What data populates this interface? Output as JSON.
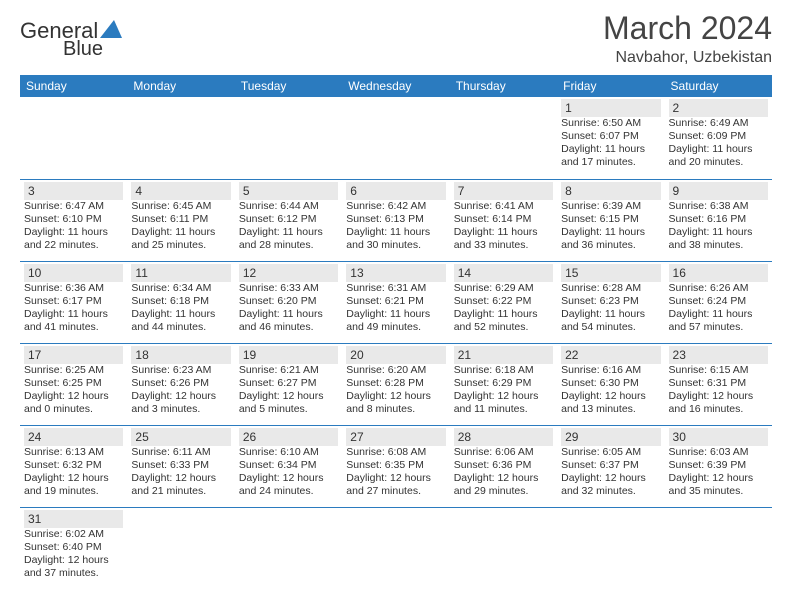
{
  "brand": {
    "name_a": "General",
    "name_b": "Blue"
  },
  "title": "March 2024",
  "location": "Navbahor, Uzbekistan",
  "colors": {
    "header_bg": "#2b7bbf",
    "header_text": "#ffffff",
    "daynum_bg": "#e9e9e9",
    "border": "#2b7bbf",
    "text": "#333333"
  },
  "day_headers": [
    "Sunday",
    "Monday",
    "Tuesday",
    "Wednesday",
    "Thursday",
    "Friday",
    "Saturday"
  ],
  "weeks": [
    [
      null,
      null,
      null,
      null,
      null,
      {
        "n": "1",
        "sunrise": "Sunrise: 6:50 AM",
        "sunset": "Sunset: 6:07 PM",
        "day1": "Daylight: 11 hours",
        "day2": "and 17 minutes."
      },
      {
        "n": "2",
        "sunrise": "Sunrise: 6:49 AM",
        "sunset": "Sunset: 6:09 PM",
        "day1": "Daylight: 11 hours",
        "day2": "and 20 minutes."
      }
    ],
    [
      {
        "n": "3",
        "sunrise": "Sunrise: 6:47 AM",
        "sunset": "Sunset: 6:10 PM",
        "day1": "Daylight: 11 hours",
        "day2": "and 22 minutes."
      },
      {
        "n": "4",
        "sunrise": "Sunrise: 6:45 AM",
        "sunset": "Sunset: 6:11 PM",
        "day1": "Daylight: 11 hours",
        "day2": "and 25 minutes."
      },
      {
        "n": "5",
        "sunrise": "Sunrise: 6:44 AM",
        "sunset": "Sunset: 6:12 PM",
        "day1": "Daylight: 11 hours",
        "day2": "and 28 minutes."
      },
      {
        "n": "6",
        "sunrise": "Sunrise: 6:42 AM",
        "sunset": "Sunset: 6:13 PM",
        "day1": "Daylight: 11 hours",
        "day2": "and 30 minutes."
      },
      {
        "n": "7",
        "sunrise": "Sunrise: 6:41 AM",
        "sunset": "Sunset: 6:14 PM",
        "day1": "Daylight: 11 hours",
        "day2": "and 33 minutes."
      },
      {
        "n": "8",
        "sunrise": "Sunrise: 6:39 AM",
        "sunset": "Sunset: 6:15 PM",
        "day1": "Daylight: 11 hours",
        "day2": "and 36 minutes."
      },
      {
        "n": "9",
        "sunrise": "Sunrise: 6:38 AM",
        "sunset": "Sunset: 6:16 PM",
        "day1": "Daylight: 11 hours",
        "day2": "and 38 minutes."
      }
    ],
    [
      {
        "n": "10",
        "sunrise": "Sunrise: 6:36 AM",
        "sunset": "Sunset: 6:17 PM",
        "day1": "Daylight: 11 hours",
        "day2": "and 41 minutes."
      },
      {
        "n": "11",
        "sunrise": "Sunrise: 6:34 AM",
        "sunset": "Sunset: 6:18 PM",
        "day1": "Daylight: 11 hours",
        "day2": "and 44 minutes."
      },
      {
        "n": "12",
        "sunrise": "Sunrise: 6:33 AM",
        "sunset": "Sunset: 6:20 PM",
        "day1": "Daylight: 11 hours",
        "day2": "and 46 minutes."
      },
      {
        "n": "13",
        "sunrise": "Sunrise: 6:31 AM",
        "sunset": "Sunset: 6:21 PM",
        "day1": "Daylight: 11 hours",
        "day2": "and 49 minutes."
      },
      {
        "n": "14",
        "sunrise": "Sunrise: 6:29 AM",
        "sunset": "Sunset: 6:22 PM",
        "day1": "Daylight: 11 hours",
        "day2": "and 52 minutes."
      },
      {
        "n": "15",
        "sunrise": "Sunrise: 6:28 AM",
        "sunset": "Sunset: 6:23 PM",
        "day1": "Daylight: 11 hours",
        "day2": "and 54 minutes."
      },
      {
        "n": "16",
        "sunrise": "Sunrise: 6:26 AM",
        "sunset": "Sunset: 6:24 PM",
        "day1": "Daylight: 11 hours",
        "day2": "and 57 minutes."
      }
    ],
    [
      {
        "n": "17",
        "sunrise": "Sunrise: 6:25 AM",
        "sunset": "Sunset: 6:25 PM",
        "day1": "Daylight: 12 hours",
        "day2": "and 0 minutes."
      },
      {
        "n": "18",
        "sunrise": "Sunrise: 6:23 AM",
        "sunset": "Sunset: 6:26 PM",
        "day1": "Daylight: 12 hours",
        "day2": "and 3 minutes."
      },
      {
        "n": "19",
        "sunrise": "Sunrise: 6:21 AM",
        "sunset": "Sunset: 6:27 PM",
        "day1": "Daylight: 12 hours",
        "day2": "and 5 minutes."
      },
      {
        "n": "20",
        "sunrise": "Sunrise: 6:20 AM",
        "sunset": "Sunset: 6:28 PM",
        "day1": "Daylight: 12 hours",
        "day2": "and 8 minutes."
      },
      {
        "n": "21",
        "sunrise": "Sunrise: 6:18 AM",
        "sunset": "Sunset: 6:29 PM",
        "day1": "Daylight: 12 hours",
        "day2": "and 11 minutes."
      },
      {
        "n": "22",
        "sunrise": "Sunrise: 6:16 AM",
        "sunset": "Sunset: 6:30 PM",
        "day1": "Daylight: 12 hours",
        "day2": "and 13 minutes."
      },
      {
        "n": "23",
        "sunrise": "Sunrise: 6:15 AM",
        "sunset": "Sunset: 6:31 PM",
        "day1": "Daylight: 12 hours",
        "day2": "and 16 minutes."
      }
    ],
    [
      {
        "n": "24",
        "sunrise": "Sunrise: 6:13 AM",
        "sunset": "Sunset: 6:32 PM",
        "day1": "Daylight: 12 hours",
        "day2": "and 19 minutes."
      },
      {
        "n": "25",
        "sunrise": "Sunrise: 6:11 AM",
        "sunset": "Sunset: 6:33 PM",
        "day1": "Daylight: 12 hours",
        "day2": "and 21 minutes."
      },
      {
        "n": "26",
        "sunrise": "Sunrise: 6:10 AM",
        "sunset": "Sunset: 6:34 PM",
        "day1": "Daylight: 12 hours",
        "day2": "and 24 minutes."
      },
      {
        "n": "27",
        "sunrise": "Sunrise: 6:08 AM",
        "sunset": "Sunset: 6:35 PM",
        "day1": "Daylight: 12 hours",
        "day2": "and 27 minutes."
      },
      {
        "n": "28",
        "sunrise": "Sunrise: 6:06 AM",
        "sunset": "Sunset: 6:36 PM",
        "day1": "Daylight: 12 hours",
        "day2": "and 29 minutes."
      },
      {
        "n": "29",
        "sunrise": "Sunrise: 6:05 AM",
        "sunset": "Sunset: 6:37 PM",
        "day1": "Daylight: 12 hours",
        "day2": "and 32 minutes."
      },
      {
        "n": "30",
        "sunrise": "Sunrise: 6:03 AM",
        "sunset": "Sunset: 6:39 PM",
        "day1": "Daylight: 12 hours",
        "day2": "and 35 minutes."
      }
    ],
    [
      {
        "n": "31",
        "sunrise": "Sunrise: 6:02 AM",
        "sunset": "Sunset: 6:40 PM",
        "day1": "Daylight: 12 hours",
        "day2": "and 37 minutes."
      },
      null,
      null,
      null,
      null,
      null,
      null
    ]
  ]
}
